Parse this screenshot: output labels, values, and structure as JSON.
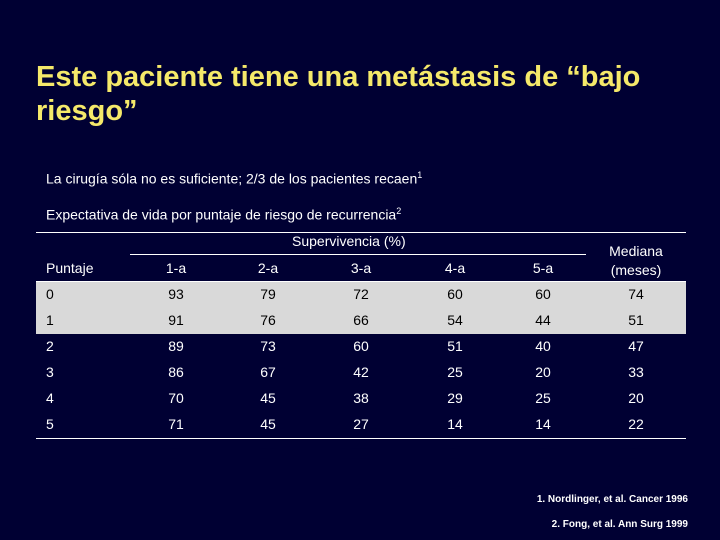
{
  "title": "Este paciente tiene una metástasis de “bajo riesgo”",
  "line1": {
    "text": "La cirugía sóla no es suficiente; 2/3 de los pacientes recaen",
    "sup": "1"
  },
  "line2": {
    "text": "Expectativa de vida por puntaje de riesgo de recurrencia",
    "sup": "2"
  },
  "table": {
    "group_header": "Supervivencia (%)",
    "columns": [
      "Puntaje",
      "1-a",
      "2-a",
      "3-a",
      "4-a",
      "5-a"
    ],
    "median_header": {
      "line1": "Mediana",
      "line2": "(meses)"
    },
    "rows": [
      [
        "0",
        "93",
        "79",
        "72",
        "60",
        "60",
        "74"
      ],
      [
        "1",
        "91",
        "76",
        "66",
        "54",
        "44",
        "51"
      ],
      [
        "2",
        "89",
        "73",
        "60",
        "51",
        "40",
        "47"
      ],
      [
        "3",
        "86",
        "67",
        "42",
        "25",
        "20",
        "33"
      ],
      [
        "4",
        "70",
        "45",
        "38",
        "29",
        "25",
        "20"
      ],
      [
        "5",
        "71",
        "45",
        "27",
        "14",
        "14",
        "22"
      ]
    ]
  },
  "references": [
    "1. Nordlinger, et al. Cancer 1996",
    "2. Fong, et al. Ann Surg 1999"
  ],
  "colors": {
    "background": "#000033",
    "title": "#f5e96a",
    "shade": "#d9d9d9"
  }
}
